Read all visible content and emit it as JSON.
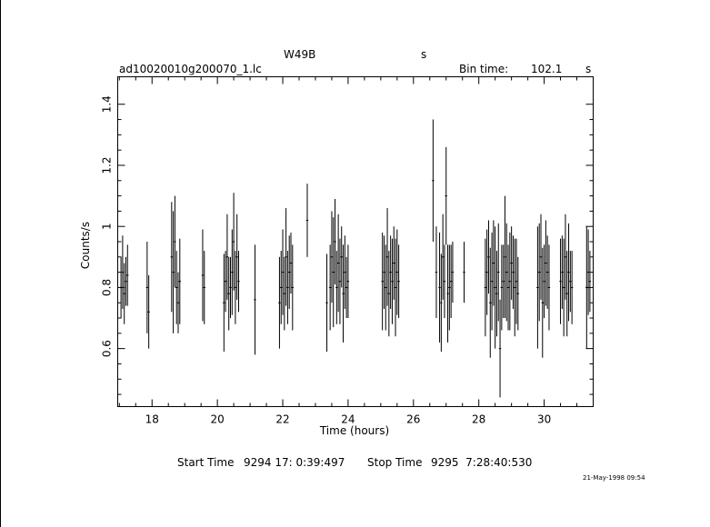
{
  "header": {
    "object": "W49B",
    "unit_s": "s",
    "filename": "ad10020010g200070_1.lc",
    "bin_label": "Bin time:",
    "bin_value": "102.1",
    "bin_unit": "s"
  },
  "footer": {
    "start_label": "Start Time",
    "start_value": "9294 17: 0:39:497",
    "stop_label": "Stop Time",
    "stop_value": "9295  7:28:40:530",
    "date_stamp": "21-May-1998 09:54"
  },
  "chart_data": {
    "type": "scatter",
    "xlabel": "Time (hours)",
    "ylabel": "Counts/s",
    "xlim": [
      16.95,
      31.5
    ],
    "ylim": [
      0.41,
      1.49
    ],
    "xticks": [
      18,
      20,
      22,
      24,
      26,
      28,
      30
    ],
    "yticks": [
      0.6,
      0.8,
      1,
      1.2,
      1.4
    ],
    "ytick_labels": [
      "0.6",
      "0.8",
      "1",
      "1.2",
      "1.4"
    ],
    "series": [
      {
        "x": [
          17.05,
          17.1,
          17.15,
          17.2,
          17.25,
          17.85,
          17.9,
          18.6,
          18.65,
          18.7,
          18.75,
          18.8,
          18.85,
          19.55,
          19.6,
          20.2,
          20.25,
          20.3,
          20.35,
          20.4,
          20.45,
          20.5,
          20.55,
          20.6,
          20.65,
          21.15,
          21.9,
          21.95,
          22.0,
          22.05,
          22.1,
          22.15,
          22.2,
          22.25,
          22.3,
          22.75,
          23.35,
          23.45,
          23.5,
          23.55,
          23.6,
          23.65,
          23.7,
          23.75,
          23.8,
          23.85,
          23.9,
          23.95,
          24.0,
          25.05,
          25.1,
          25.15,
          25.2,
          25.25,
          25.3,
          25.35,
          25.4,
          25.45,
          25.5,
          25.55,
          26.6,
          26.7,
          26.8,
          26.85,
          26.9,
          26.95,
          27.0,
          27.05,
          27.1,
          27.15,
          27.2,
          27.55,
          28.2,
          28.25,
          28.3,
          28.35,
          28.4,
          28.45,
          28.5,
          28.55,
          28.6,
          28.65,
          28.7,
          28.75,
          28.8,
          28.85,
          28.9,
          28.95,
          29.0,
          29.05,
          29.1,
          29.15,
          29.2,
          29.8,
          29.85,
          29.9,
          29.95,
          30.0,
          30.05,
          30.1,
          30.15,
          30.5,
          30.55,
          30.6,
          30.65,
          30.7,
          30.75,
          30.8,
          30.85,
          31.3,
          31.35,
          31.4
        ],
        "y": [
          0.8,
          0.85,
          0.78,
          0.82,
          0.84,
          0.8,
          0.72,
          0.9,
          0.85,
          0.95,
          0.8,
          0.75,
          0.82,
          0.84,
          0.8,
          0.75,
          0.82,
          0.9,
          0.78,
          0.8,
          0.85,
          0.95,
          0.8,
          0.9,
          0.82,
          0.76,
          0.75,
          0.8,
          0.85,
          0.78,
          0.9,
          0.8,
          0.85,
          0.88,
          0.8,
          1.02,
          0.75,
          0.8,
          0.9,
          0.85,
          0.95,
          0.8,
          0.88,
          0.82,
          0.9,
          0.78,
          0.85,
          0.8,
          0.82,
          0.82,
          0.85,
          0.8,
          0.9,
          0.78,
          0.85,
          0.82,
          0.88,
          0.8,
          0.85,
          0.82,
          1.15,
          0.85,
          0.8,
          0.75,
          0.9,
          0.82,
          1.1,
          0.78,
          0.8,
          0.82,
          0.85,
          0.85,
          0.8,
          0.85,
          0.9,
          0.75,
          0.82,
          0.88,
          0.8,
          0.78,
          0.85,
          0.6,
          0.8,
          0.82,
          0.9,
          0.85,
          0.8,
          0.82,
          0.88,
          0.85,
          0.8,
          0.82,
          0.78,
          0.8,
          0.85,
          0.9,
          0.75,
          0.82,
          0.88,
          0.85,
          0.8,
          0.82,
          0.85,
          0.8,
          0.9,
          0.78,
          0.85,
          0.82,
          0.8,
          0.8,
          0.85,
          0.82
        ],
        "err": [
          0.1,
          0.12,
          0.1,
          0.08,
          0.1,
          0.15,
          0.12,
          0.18,
          0.2,
          0.15,
          0.12,
          0.1,
          0.14,
          0.15,
          0.12,
          0.16,
          0.1,
          0.14,
          0.12,
          0.1,
          0.14,
          0.16,
          0.12,
          0.14,
          0.1,
          0.18,
          0.15,
          0.12,
          0.14,
          0.12,
          0.16,
          0.12,
          0.12,
          0.1,
          0.14,
          0.12,
          0.16,
          0.14,
          0.15,
          0.18,
          0.14,
          0.12,
          0.16,
          0.14,
          0.1,
          0.16,
          0.12,
          0.1,
          0.12,
          0.16,
          0.12,
          0.14,
          0.16,
          0.14,
          0.12,
          0.14,
          0.12,
          0.16,
          0.14,
          0.12,
          0.2,
          0.15,
          0.18,
          0.16,
          0.14,
          0.12,
          0.16,
          0.16,
          0.14,
          0.12,
          0.1,
          0.1,
          0.16,
          0.14,
          0.12,
          0.18,
          0.16,
          0.14,
          0.2,
          0.14,
          0.16,
          0.16,
          0.14,
          0.12,
          0.2,
          0.16,
          0.14,
          0.16,
          0.12,
          0.12,
          0.16,
          0.14,
          0.12,
          0.2,
          0.16,
          0.14,
          0.18,
          0.12,
          0.14,
          0.12,
          0.14,
          0.14,
          0.12,
          0.16,
          0.14,
          0.14,
          0.16,
          0.1,
          0.12,
          0.2,
          0.14,
          0.1
        ]
      }
    ]
  }
}
